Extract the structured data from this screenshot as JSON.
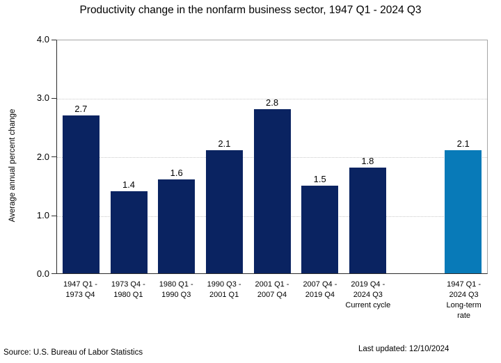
{
  "title": "Productivity change in the nonfarm business sector, 1947 Q1 - 2024 Q3",
  "y_axis": {
    "label": "Average annual percent change",
    "ticks": [
      "4.0",
      "3.0",
      "2.0",
      "1.0",
      "0.0"
    ]
  },
  "footer": {
    "source": "Source: U.S. Bureau of Labor Statistics",
    "last_updated": "Last updated: 12/10/2024"
  },
  "colors": {
    "bar_navy": "#0a2361",
    "bar_highlight_blue": "#087ab8",
    "gridline": "#c9c9c9",
    "frame_gray": "#a6a6a6",
    "axis_dark": "#2b2b2b"
  },
  "chart_data": {
    "type": "bar",
    "title": "Productivity change in the nonfarm business sector, 1947 Q1 - 2024 Q3",
    "xlabel": "",
    "ylabel": "Average annual percent change",
    "ylim": [
      0,
      4.0
    ],
    "yticks": [
      0.0,
      1.0,
      2.0,
      3.0,
      4.0
    ],
    "grid": "horizontal dotted at 1.0, 2.0, 3.0",
    "legend_position": "none",
    "categories": [
      "1947 Q1 - 1973 Q4",
      "1973 Q4 - 1980 Q1",
      "1980 Q1 - 1990 Q3",
      "1990 Q3 - 2001 Q1",
      "2001 Q1 - 2007 Q4",
      "2007 Q4 - 2019 Q4",
      "2019 Q4 - 2024 Q3 Current cycle",
      "1947 Q1 - 2024 Q3 Long-term rate"
    ],
    "values": [
      2.7,
      1.4,
      1.6,
      2.1,
      2.8,
      1.5,
      1.8,
      2.1
    ],
    "bar_color_keys": [
      "navy",
      "navy",
      "navy",
      "navy",
      "navy",
      "navy",
      "navy",
      "highlight_blue"
    ]
  },
  "bars": [
    {
      "value": "2.7",
      "lines": [
        "1947 Q1 -",
        "1973 Q4"
      ],
      "highlight": false
    },
    {
      "value": "1.4",
      "lines": [
        "1973 Q4 -",
        "1980 Q1"
      ],
      "highlight": false
    },
    {
      "value": "1.6",
      "lines": [
        "1980 Q1 -",
        "1990 Q3"
      ],
      "highlight": false
    },
    {
      "value": "2.1",
      "lines": [
        "1990 Q3 -",
        "2001 Q1"
      ],
      "highlight": false
    },
    {
      "value": "2.8",
      "lines": [
        "2001 Q1 -",
        "2007 Q4"
      ],
      "highlight": false
    },
    {
      "value": "1.5",
      "lines": [
        "2007 Q4 -",
        "2019 Q4"
      ],
      "highlight": false
    },
    {
      "value": "1.8",
      "lines": [
        "2019 Q4 -",
        "2024 Q3",
        "Current cycle"
      ],
      "highlight": false
    },
    {
      "spacer": true
    },
    {
      "value": "2.1",
      "lines": [
        "1947 Q1 -",
        "2024 Q3",
        "Long-term",
        "rate"
      ],
      "highlight": true
    }
  ]
}
